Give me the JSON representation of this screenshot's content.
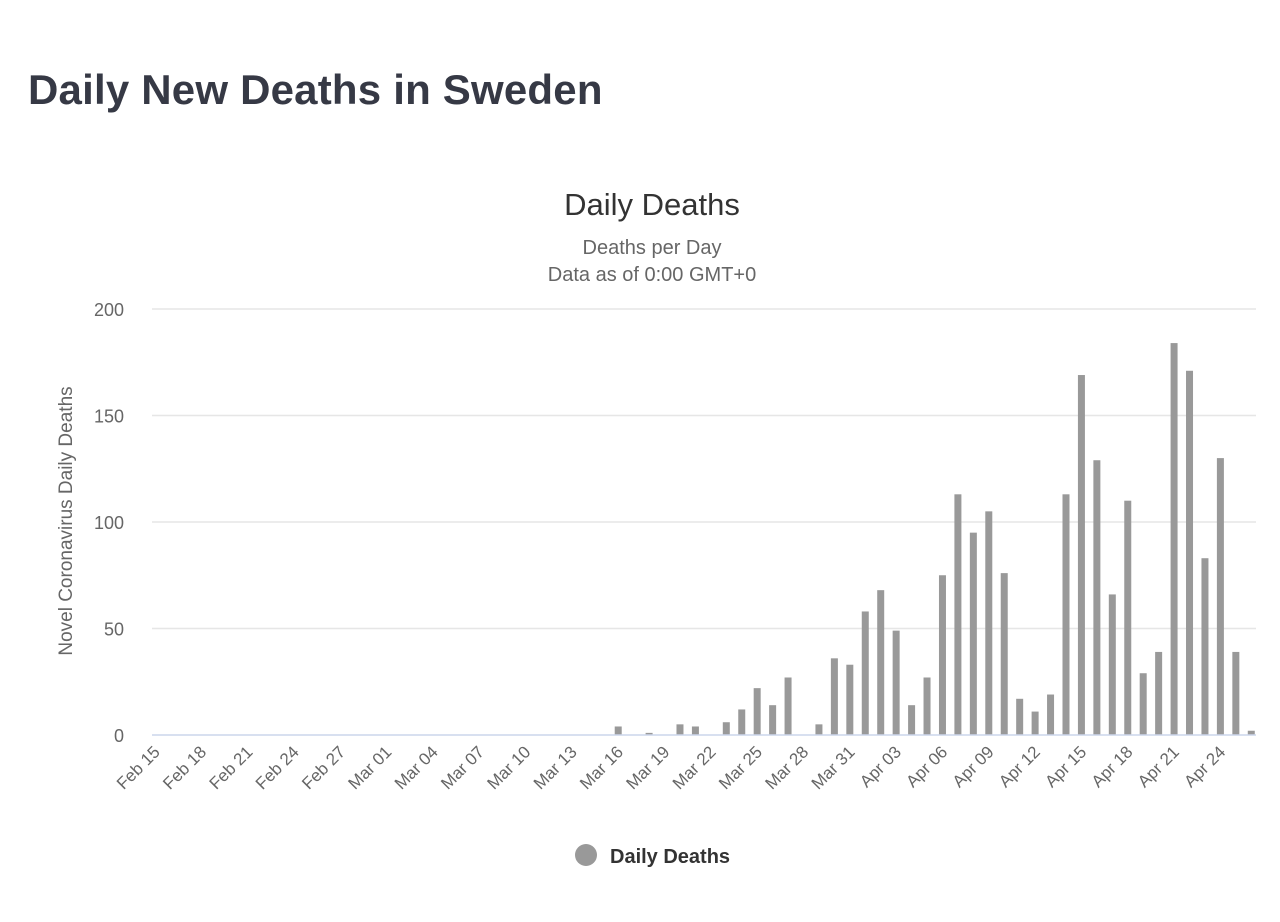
{
  "page": {
    "title": "Daily New Deaths in Sweden"
  },
  "chart_data": {
    "type": "bar",
    "title": "Daily Deaths",
    "subtitle_lines": [
      "Deaths per Day",
      "Data as of 0:00 GMT+0"
    ],
    "ylabel": "Novel Coronavirus Daily Deaths",
    "xlabel": "",
    "ylim": [
      0,
      200
    ],
    "y_ticks": [
      0,
      50,
      100,
      150,
      200
    ],
    "grid": true,
    "legend_position": "bottom-center",
    "bar_color": "#999999",
    "categories": [
      "Feb 15",
      "Feb 16",
      "Feb 17",
      "Feb 18",
      "Feb 19",
      "Feb 20",
      "Feb 21",
      "Feb 22",
      "Feb 23",
      "Feb 24",
      "Feb 25",
      "Feb 26",
      "Feb 27",
      "Feb 28",
      "Feb 29",
      "Mar 01",
      "Mar 02",
      "Mar 03",
      "Mar 04",
      "Mar 05",
      "Mar 06",
      "Mar 07",
      "Mar 08",
      "Mar 09",
      "Mar 10",
      "Mar 11",
      "Mar 12",
      "Mar 13",
      "Mar 14",
      "Mar 15",
      "Mar 16",
      "Mar 17",
      "Mar 18",
      "Mar 19",
      "Mar 20",
      "Mar 21",
      "Mar 22",
      "Mar 23",
      "Mar 24",
      "Mar 25",
      "Mar 26",
      "Mar 27",
      "Mar 28",
      "Mar 29",
      "Mar 30",
      "Mar 31",
      "Apr 01",
      "Apr 02",
      "Apr 03",
      "Apr 04",
      "Apr 05",
      "Apr 06",
      "Apr 07",
      "Apr 08",
      "Apr 09",
      "Apr 10",
      "Apr 11",
      "Apr 12",
      "Apr 13",
      "Apr 14",
      "Apr 15",
      "Apr 16",
      "Apr 17",
      "Apr 18",
      "Apr 19",
      "Apr 20",
      "Apr 21",
      "Apr 22",
      "Apr 23",
      "Apr 24",
      "Apr 25",
      "Apr 26"
    ],
    "x_tick_labels": [
      "Feb 15",
      "Feb 18",
      "Feb 21",
      "Feb 24",
      "Feb 27",
      "Mar 01",
      "Mar 04",
      "Mar 07",
      "Mar 10",
      "Mar 13",
      "Mar 16",
      "Mar 19",
      "Mar 22",
      "Mar 25",
      "Mar 28",
      "Mar 31",
      "Apr 03",
      "Apr 06",
      "Apr 09",
      "Apr 12",
      "Apr 15",
      "Apr 18",
      "Apr 21",
      "Apr 24"
    ],
    "series": [
      {
        "name": "Daily Deaths",
        "values": [
          0,
          0,
          0,
          0,
          0,
          0,
          0,
          0,
          0,
          0,
          0,
          0,
          0,
          0,
          0,
          0,
          0,
          0,
          0,
          0,
          0,
          0,
          0,
          0,
          0,
          0,
          0,
          0,
          0,
          0,
          4,
          0,
          1,
          0,
          5,
          4,
          0,
          6,
          12,
          22,
          14,
          27,
          0,
          5,
          36,
          33,
          58,
          68,
          49,
          14,
          27,
          75,
          113,
          95,
          105,
          76,
          17,
          11,
          19,
          113,
          169,
          129,
          66,
          110,
          29,
          39,
          184,
          171,
          83,
          130,
          39,
          2
        ]
      }
    ]
  }
}
